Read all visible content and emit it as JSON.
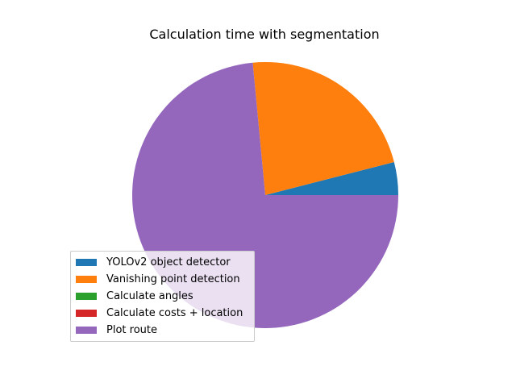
{
  "chart_data": {
    "type": "pie",
    "title": "Calculation time with segmentation",
    "legend_position": "lower-left",
    "slices": [
      {
        "label": "YOLOv2 object detector",
        "value": 4.0,
        "color": "#1f77b4"
      },
      {
        "label": "Vanishing point detection",
        "value": 22.5,
        "color": "#ff7f0e"
      },
      {
        "label": "Calculate angles",
        "value": 0.0,
        "color": "#2ca02c"
      },
      {
        "label": "Calculate costs + location",
        "value": 0.0,
        "color": "#d62728"
      },
      {
        "label": "Plot route",
        "value": 73.5,
        "color": "#9467bd"
      }
    ]
  }
}
